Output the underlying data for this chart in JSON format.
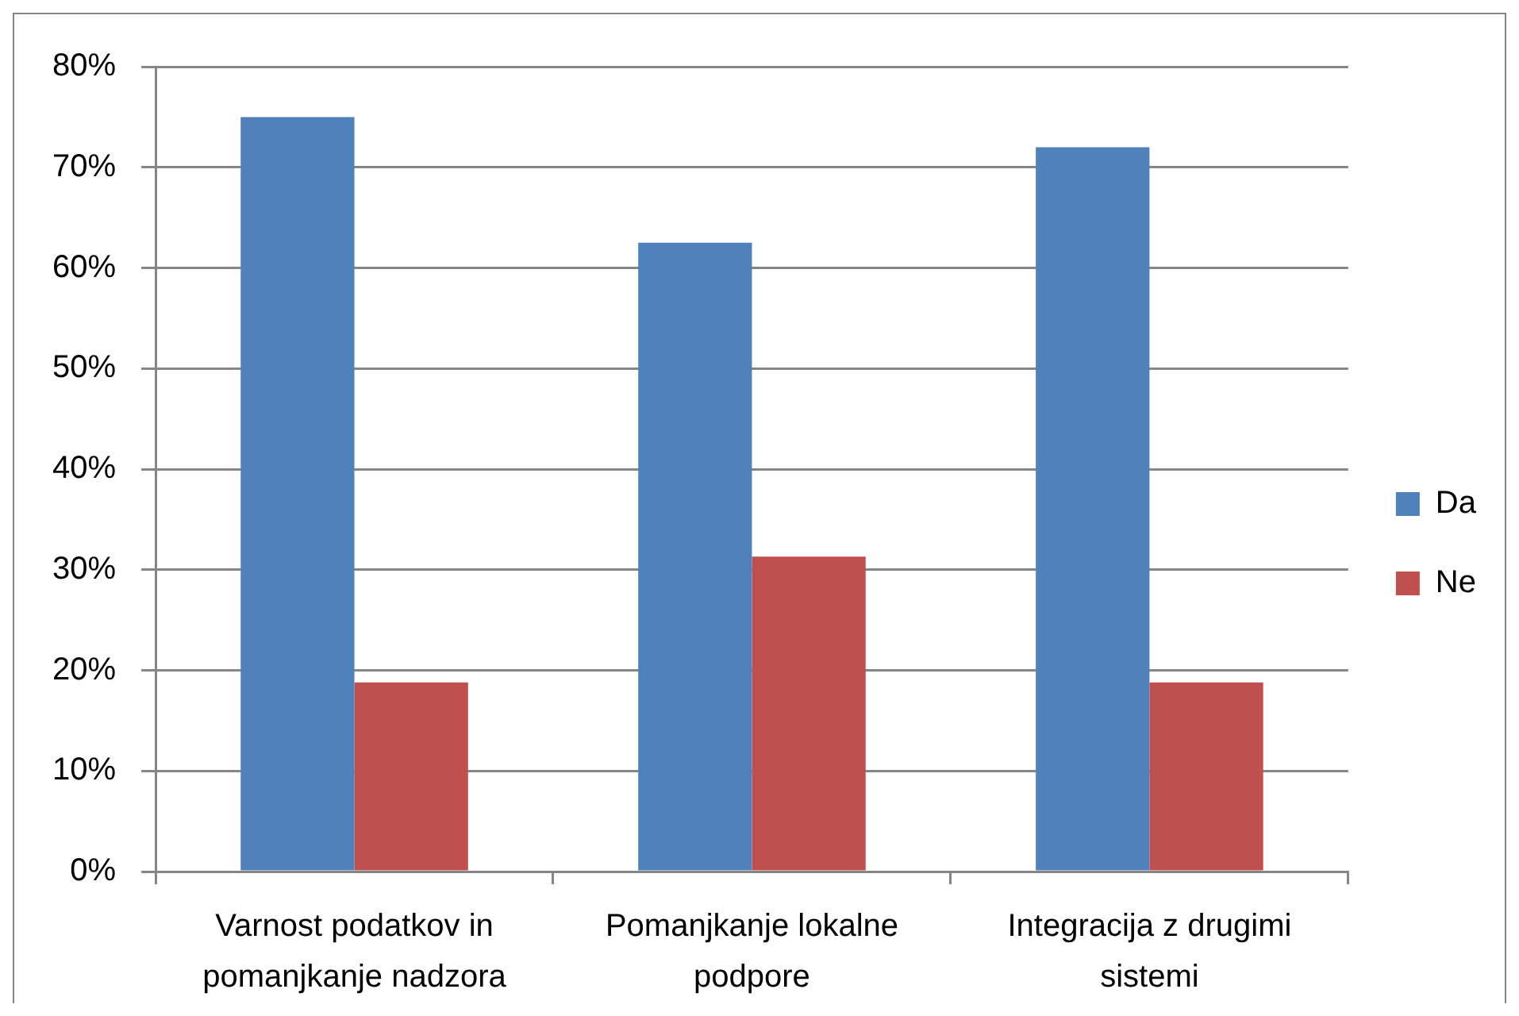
{
  "chart_data": {
    "type": "bar",
    "categories": [
      "Varnost podatkov in pomanjkanje nadzora",
      "Pomanjkanje lokalne podpore",
      "Integracija z drugimi sistemi"
    ],
    "series": [
      {
        "name": "Da",
        "color": "#4f81bd",
        "values": [
          75,
          62.5,
          72
        ]
      },
      {
        "name": "Ne",
        "color": "#c0504d",
        "values": [
          18.8,
          31.3,
          18.8
        ]
      }
    ],
    "ylim": [
      0,
      80
    ],
    "yticks": [
      {
        "value": 0,
        "label": "0%"
      },
      {
        "value": 10,
        "label": "10%"
      },
      {
        "value": 20,
        "label": "20%"
      },
      {
        "value": 30,
        "label": "30%"
      },
      {
        "value": 40,
        "label": "40%"
      },
      {
        "value": 50,
        "label": "50%"
      },
      {
        "value": 60,
        "label": "60%"
      },
      {
        "value": 70,
        "label": "70%"
      },
      {
        "value": 80,
        "label": "80%"
      }
    ],
    "grid": "y",
    "legend": "right"
  }
}
